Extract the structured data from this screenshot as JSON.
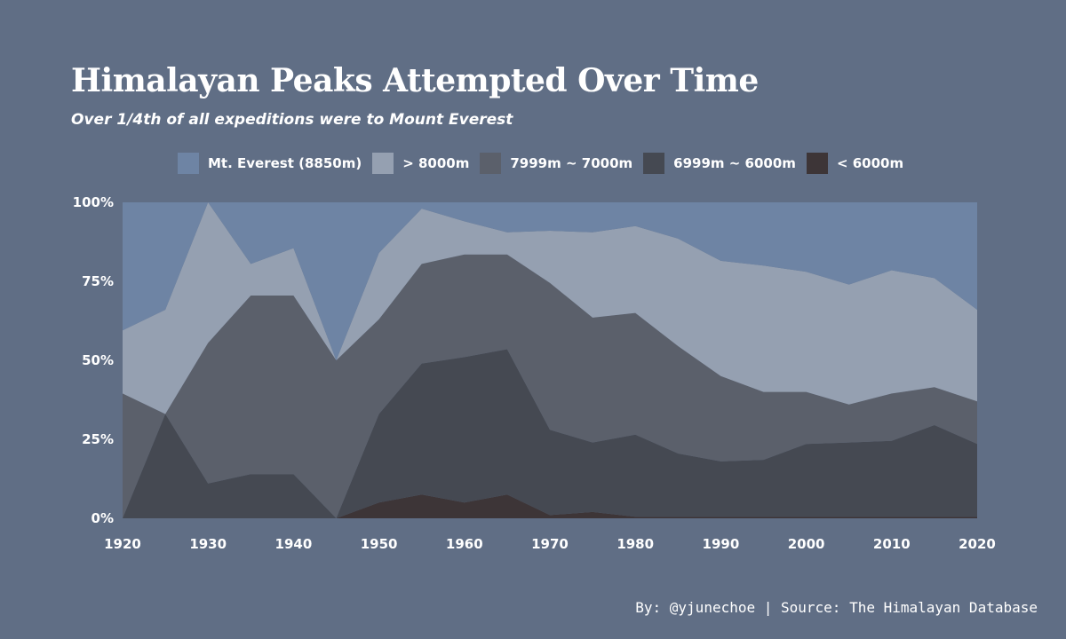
{
  "colors": {
    "background": "#606e85",
    "text": "#ffffff"
  },
  "chart_data": {
    "type": "area",
    "title": "Himalayan Peaks Attempted Over Time",
    "subtitle": "Over 1/4th of all expeditions were to Mount Everest",
    "stacked": true,
    "normalized": true,
    "x": [
      1920,
      1925,
      1930,
      1935,
      1940,
      1945,
      1950,
      1955,
      1960,
      1965,
      1970,
      1975,
      1980,
      1985,
      1990,
      1995,
      2000,
      2005,
      2010,
      2015,
      2020
    ],
    "xticks": [
      "1920",
      "1930",
      "1940",
      "1950",
      "1960",
      "1970",
      "1980",
      "1990",
      "2000",
      "2010",
      "2020"
    ],
    "xtick_values": [
      1920,
      1930,
      1940,
      1950,
      1960,
      1970,
      1980,
      1990,
      2000,
      2010,
      2020
    ],
    "yticks": [
      "0%",
      "25%",
      "50%",
      "75%",
      "100%"
    ],
    "ytick_values": [
      0,
      25,
      50,
      75,
      100
    ],
    "ylim": [
      0,
      100
    ],
    "xlim": [
      1920,
      2020
    ],
    "legend_position": "top",
    "grid": false,
    "series": [
      {
        "name": "< 6000m",
        "color": "#3d3537",
        "values": [
          0,
          0,
          0,
          0,
          0,
          0,
          5,
          7.5,
          5,
          7.5,
          1,
          2,
          0.5,
          0.5,
          0.5,
          0.5,
          0.5,
          0.5,
          0.5,
          0.5,
          0.5
        ]
      },
      {
        "name": "6999m ~ 6000m",
        "color": "#454952",
        "values": [
          0,
          33,
          11,
          14,
          14,
          0,
          28,
          41.5,
          46,
          46,
          27,
          22,
          26,
          20,
          17.5,
          18,
          23,
          23.5,
          24,
          29,
          23
        ]
      },
      {
        "name": "7999m ~ 7000m",
        "color": "#5b606b",
        "values": [
          39.5,
          0,
          44.5,
          56.5,
          56.5,
          50,
          30,
          31.5,
          32.5,
          30,
          46.5,
          39.5,
          38.5,
          34,
          27,
          21.5,
          16.5,
          12,
          15,
          12,
          13.5
        ]
      },
      {
        "name": "> 8000m",
        "color": "#95a0b1",
        "values": [
          20,
          33,
          44.5,
          10,
          15,
          0,
          21,
          17.5,
          10.5,
          7,
          16.5,
          27,
          27.5,
          34,
          36.5,
          40,
          38,
          38,
          39,
          34.5,
          29
        ]
      },
      {
        "name": "Mt. Everest (8850m)",
        "color": "#6e84a4",
        "values": [
          40.5,
          34,
          0,
          19.5,
          14.5,
          50,
          16,
          2,
          6,
          9.5,
          9,
          9.5,
          7.5,
          11.5,
          18.5,
          20,
          22,
          26,
          21.5,
          24,
          34
        ]
      }
    ],
    "legend_order": [
      "Mt. Everest (8850m)",
      "> 8000m",
      "7999m ~ 7000m",
      "6999m ~ 6000m",
      "< 6000m"
    ]
  },
  "legend": [
    {
      "label": "Mt. Everest (8850m)",
      "color": "#6e84a4"
    },
    {
      "label": "> 8000m",
      "color": "#95a0b1"
    },
    {
      "label": "7999m ~ 7000m",
      "color": "#5b606b"
    },
    {
      "label": "6999m ~ 6000m",
      "color": "#454952"
    },
    {
      "label": "< 6000m",
      "color": "#3d3537"
    }
  ],
  "caption": "By: @yjunechoe | Source: The Himalayan Database"
}
